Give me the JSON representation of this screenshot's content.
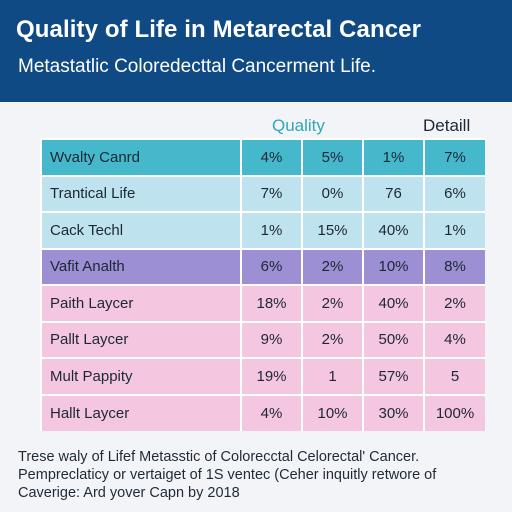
{
  "header": {
    "title": "Quality of Life in Metarectal Cancer",
    "subtitle": "Metastatlic Coloredecttal Cancerment Life."
  },
  "column_headers": {
    "quality": "Quality",
    "detail": "Detaill"
  },
  "chart_data": {
    "type": "table",
    "title": "Quality of Life in Metarectal Cancer",
    "rows": [
      {
        "label": "Wvalty Canrd",
        "values": [
          "4%",
          "5%",
          "1%",
          "7%"
        ],
        "color": "#45b8cc"
      },
      {
        "label": "Trantical Life",
        "values": [
          "7%",
          "0%",
          "76",
          "6%"
        ],
        "color": "#bfe2ef"
      },
      {
        "label": "Cack Techl",
        "values": [
          "1%",
          "15%",
          "40%",
          "1%"
        ],
        "color": "#bfe2ef"
      },
      {
        "label": "Vafit Analth",
        "values": [
          "6%",
          "2%",
          "10%",
          "8%"
        ],
        "color": "#9c8fd4"
      },
      {
        "label": "Paith Laycer",
        "values": [
          "18%",
          "2%",
          "40%",
          "2%"
        ],
        "color": "#f4c6df"
      },
      {
        "label": "Pallt Laycer",
        "values": [
          "9%",
          "2%",
          "50%",
          "4%"
        ],
        "color": "#f4c6df"
      },
      {
        "label": "Mult Pappity",
        "values": [
          "19%",
          "1",
          "57%",
          "5"
        ],
        "color": "#f4c6df"
      },
      {
        "label": "Hallt Laycer",
        "values": [
          "4%",
          "10%",
          "30%",
          "100%"
        ],
        "color": "#f4c6df"
      }
    ]
  },
  "footer": {
    "lines": [
      "Trese waly of Lifef Metasstic of Colorecctal Celorectal' Cancer.",
      "Pempreclaticy or vertaiget of 1S ventec (Ceher inquitly retwore of",
      "Caverige: Ard yover Capn by 2018"
    ]
  }
}
